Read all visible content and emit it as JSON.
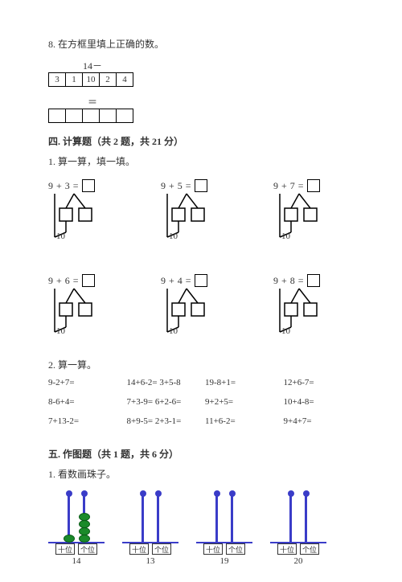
{
  "q8": {
    "text": "8. 在方框里填上正确的数。",
    "top_expr": "14－",
    "cells": [
      "3",
      "1",
      "10",
      "2",
      "4"
    ],
    "eq": "＝"
  },
  "sec4": {
    "head": "四. 计算题（共 2 题，共 21 分）",
    "q1": "1. 算一算，填一填。",
    "decomp": [
      {
        "a": "9",
        "b": "3",
        "base": "10"
      },
      {
        "a": "9",
        "b": "5",
        "base": "10"
      },
      {
        "a": "9",
        "b": "7",
        "base": "10"
      },
      {
        "a": "9",
        "b": "6",
        "base": "10"
      },
      {
        "a": "9",
        "b": "4",
        "base": "10"
      },
      {
        "a": "9",
        "b": "8",
        "base": "10"
      }
    ],
    "q2": "2. 算一算。",
    "arith": [
      "9-2+7=",
      "14+6-2=",
      "3+5-8",
      "19-8+1=",
      "12+6-7=",
      "8-6+4=",
      "7+3-9=",
      "6+2-6=",
      "9+2+5=",
      "10+4-8=",
      "7+13-2=",
      "8+9-5=",
      "2+3-1=",
      "11+6-2=",
      "9+4+7="
    ],
    "arith_rows": [
      [
        "9-2+7=",
        "14+6-2= 3+5-8",
        "19-8+1=",
        "12+6-7="
      ],
      [
        "8-6+4=",
        "7+3-9= 6+2-6=",
        "9+2+5=",
        "10+4-8="
      ],
      [
        "7+13-2=",
        "8+9-5= 2+3-1=",
        "11+6-2=",
        "9+4+7="
      ]
    ]
  },
  "sec5": {
    "head": "五. 作图题（共 1 题，共 6 分）",
    "q1": "1. 看数画珠子。",
    "slot_tens": "十位",
    "slot_ones": "个位",
    "abaci": [
      {
        "num": "14",
        "tens_beads": 1,
        "ones_beads": 4
      },
      {
        "num": "13",
        "tens_beads": 0,
        "ones_beads": 0
      },
      {
        "num": "19",
        "tens_beads": 0,
        "ones_beads": 0
      },
      {
        "num": "20",
        "tens_beads": 0,
        "ones_beads": 0
      }
    ]
  },
  "colors": {
    "rod": "#3a3cc8",
    "bead": "#1a8a2a"
  }
}
